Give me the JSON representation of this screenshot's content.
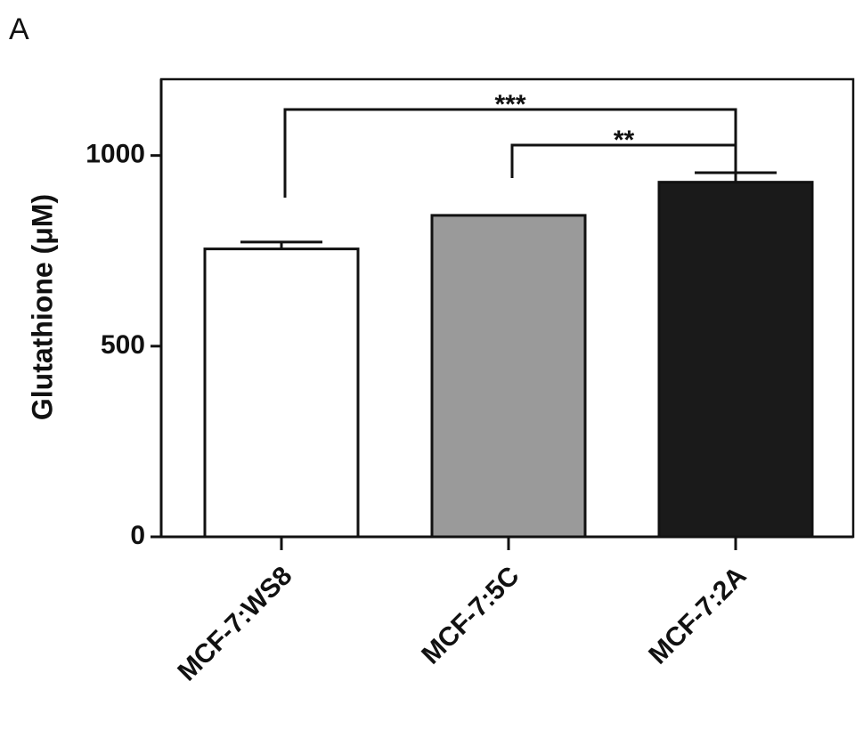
{
  "panel_label": "A",
  "chart_data": {
    "type": "bar",
    "y_label": "Glutathione (μM)",
    "categories": [
      "MCF-7:WS8",
      "MCF-7:5C",
      "MCF-7:2A"
    ],
    "values": [
      755,
      843,
      930
    ],
    "errors": [
      18,
      null,
      25
    ],
    "colors": [
      "#ffffff",
      "#9a9a9a",
      "#1a1a1a"
    ],
    "ylim": [
      0,
      1200
    ],
    "yticks": [
      0,
      500,
      1000
    ],
    "annotations": [
      "***",
      "**"
    ]
  }
}
